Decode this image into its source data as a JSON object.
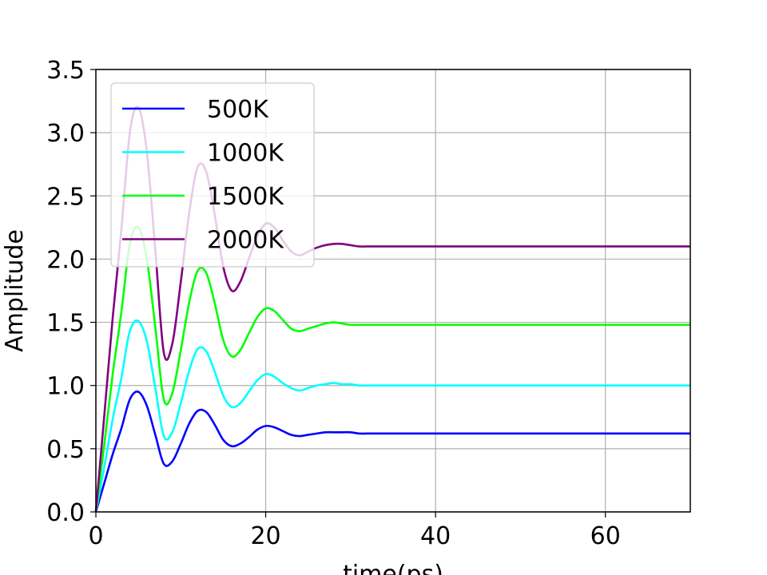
{
  "chart_data": {
    "type": "line",
    "xlabel": "time(ps)",
    "ylabel": "Amplitude",
    "xlim": [
      0,
      70
    ],
    "ylim": [
      0,
      3.5
    ],
    "xticks": [
      0,
      20,
      40,
      60
    ],
    "xtick_labels": [
      "0",
      "20",
      "40",
      "60"
    ],
    "yticks": [
      0,
      0.5,
      1.0,
      1.5,
      2.0,
      2.5,
      3.0,
      3.5
    ],
    "ytick_labels": [
      "0.0",
      "0.5",
      "1.0",
      "1.5",
      "2.0",
      "2.5",
      "3.0",
      "3.5"
    ],
    "grid": true,
    "legend_position": "top-left",
    "x": [
      0,
      1,
      2,
      3,
      4,
      5,
      6,
      7,
      8,
      9,
      10,
      11,
      12,
      13,
      14,
      15,
      16,
      17,
      18,
      19,
      20,
      21,
      22,
      23,
      24,
      25,
      26,
      27,
      28,
      29,
      30,
      31,
      32,
      33,
      34,
      35,
      36,
      37,
      38,
      39,
      40,
      45,
      50,
      55,
      60,
      65,
      70
    ],
    "series": [
      {
        "name": "500K",
        "color": "#0000ff",
        "values": [
          0.0,
          0.23,
          0.46,
          0.66,
          0.89,
          0.95,
          0.84,
          0.61,
          0.38,
          0.4,
          0.54,
          0.7,
          0.8,
          0.79,
          0.69,
          0.57,
          0.52,
          0.54,
          0.59,
          0.65,
          0.68,
          0.67,
          0.64,
          0.61,
          0.6,
          0.61,
          0.62,
          0.63,
          0.63,
          0.63,
          0.63,
          0.62,
          0.62,
          0.62,
          0.62,
          0.62,
          0.62,
          0.62,
          0.62,
          0.62,
          0.62,
          0.62,
          0.62,
          0.62,
          0.62,
          0.62,
          0.62
        ]
      },
      {
        "name": "1000K",
        "color": "#00ffff",
        "values": [
          0.0,
          0.36,
          0.74,
          1.06,
          1.43,
          1.51,
          1.35,
          0.98,
          0.6,
          0.63,
          0.86,
          1.12,
          1.29,
          1.27,
          1.11,
          0.92,
          0.83,
          0.86,
          0.95,
          1.04,
          1.09,
          1.07,
          1.02,
          0.98,
          0.96,
          0.98,
          1.0,
          1.01,
          1.02,
          1.01,
          1.01,
          1.0,
          1.0,
          1.0,
          1.0,
          1.0,
          1.0,
          1.0,
          1.0,
          1.0,
          1.0,
          1.0,
          1.0,
          1.0,
          1.0,
          1.0,
          1.0
        ]
      },
      {
        "name": "1500K",
        "color": "#00ff00",
        "values": [
          0.0,
          0.54,
          1.1,
          1.58,
          2.12,
          2.25,
          2.0,
          1.46,
          0.89,
          0.94,
          1.28,
          1.66,
          1.91,
          1.89,
          1.65,
          1.36,
          1.23,
          1.28,
          1.41,
          1.54,
          1.61,
          1.59,
          1.52,
          1.45,
          1.43,
          1.45,
          1.47,
          1.49,
          1.5,
          1.49,
          1.48,
          1.48,
          1.48,
          1.48,
          1.48,
          1.48,
          1.48,
          1.48,
          1.48,
          1.48,
          1.48,
          1.48,
          1.48,
          1.48,
          1.48,
          1.48,
          1.48
        ]
      },
      {
        "name": "2000K",
        "color": "#800080",
        "values": [
          0.0,
          0.77,
          1.55,
          2.23,
          3.0,
          3.2,
          2.85,
          2.07,
          1.26,
          1.33,
          1.82,
          2.37,
          2.73,
          2.69,
          2.35,
          1.94,
          1.75,
          1.82,
          2.0,
          2.18,
          2.28,
          2.25,
          2.15,
          2.06,
          2.03,
          2.06,
          2.09,
          2.11,
          2.12,
          2.12,
          2.11,
          2.1,
          2.1,
          2.1,
          2.1,
          2.1,
          2.1,
          2.1,
          2.1,
          2.1,
          2.1,
          2.1,
          2.1,
          2.1,
          2.1,
          2.1,
          2.1
        ]
      }
    ]
  }
}
